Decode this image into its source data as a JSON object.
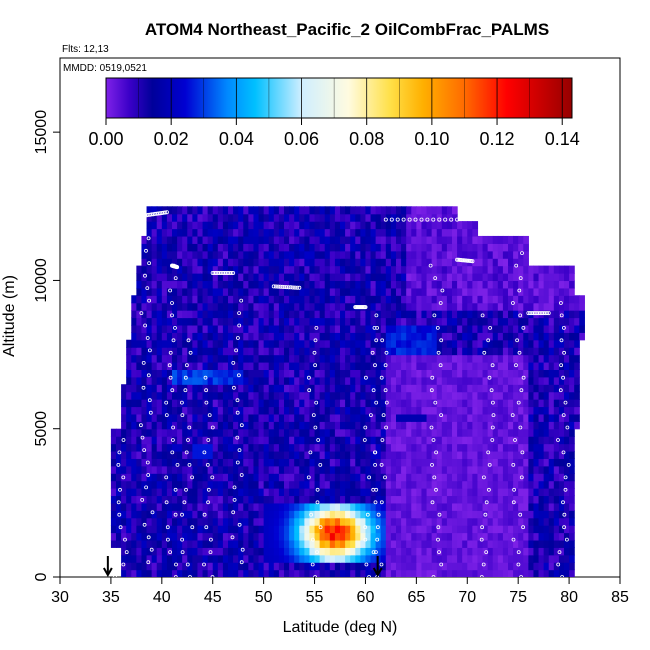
{
  "chart_data": {
    "type": "heatmap",
    "title": "ATOM4 Northeast_Pacific_2 OilCombFrac_PALMS",
    "flights_label": "Flts: 12,13",
    "mmdd_label": "MMDD: 0519,0521",
    "xlabel": "Latitude (deg N)",
    "ylabel": "Altitude (m)",
    "xlim": [
      30,
      85
    ],
    "ylim": [
      0,
      17500
    ],
    "x_ticks": [
      "30",
      "35",
      "40",
      "45",
      "50",
      "55",
      "60",
      "65",
      "70",
      "75",
      "80",
      "85"
    ],
    "y_ticks": [
      "0",
      "5000",
      "10000",
      "15000"
    ],
    "colorbar": {
      "range": [
        0,
        0.143
      ],
      "tick_labels": [
        "0.00",
        "0.02",
        "0.04",
        "0.06",
        "0.08",
        "0.10",
        "0.12",
        "0.14"
      ],
      "colors": [
        "#8a2be2",
        "#00008b",
        "#00bfff",
        "#ffffff",
        "#ffd700",
        "#ff8c00",
        "#ff0000",
        "#8b0000"
      ]
    },
    "grid": false,
    "arrow_markers_lat": [
      34.7,
      61.2
    ],
    "lat_bins": [
      37.5,
      70
    ],
    "alt_bins_m": [
      0,
      12500
    ],
    "cell_values_note": "mostly 0.00-0.03, with an enhancement peaking near 0.13 at 55-59 N, 500-2500 m",
    "hotspot": {
      "lat_range": [
        50,
        62
      ],
      "alt_range_m": [
        500,
        2500
      ],
      "peak_value": 0.13,
      "peak_lat": 57,
      "peak_alt_m": 1500
    }
  }
}
